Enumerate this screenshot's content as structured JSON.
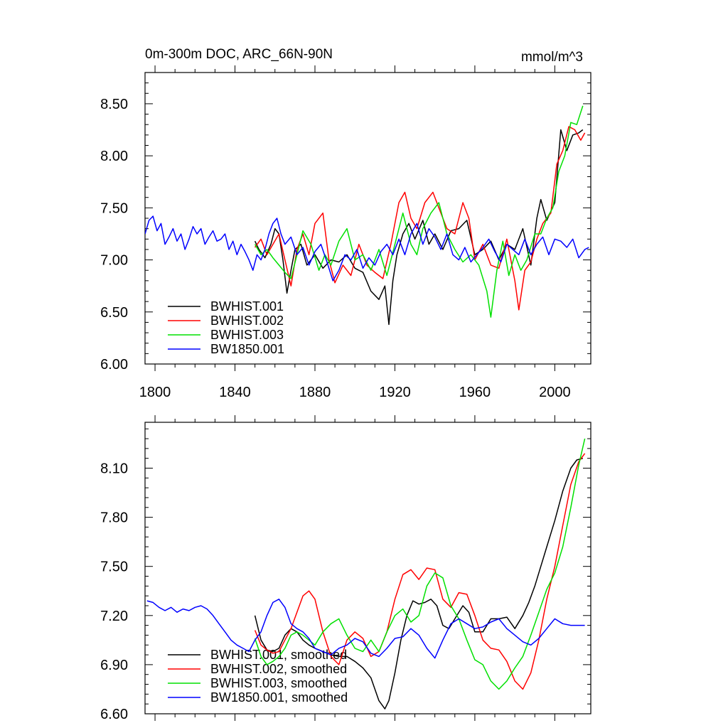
{
  "chart_data": [
    {
      "type": "line",
      "title": "0m-300m DOC, ARC_66N-90N",
      "units": "mmol/m^3",
      "xlim": [
        1795,
        2018
      ],
      "ylim": [
        6.0,
        8.8
      ],
      "x_ticks": [
        1800,
        1840,
        1880,
        1920,
        1960,
        2000
      ],
      "x_tick_labels": [
        "1800",
        "1840",
        "1880",
        "1920",
        "1960",
        "2000"
      ],
      "y_ticks": [
        6.0,
        6.5,
        7.0,
        7.5,
        8.0,
        8.5
      ],
      "y_tick_labels": [
        "6.00",
        "6.50",
        "7.00",
        "7.50",
        "8.00",
        "8.50"
      ],
      "legend_position": "bottom-left",
      "series": [
        {
          "name": "BWHIST.001",
          "color": "#000000",
          "x": [
            1850,
            1852,
            1855,
            1858,
            1860,
            1862,
            1864,
            1866,
            1868,
            1870,
            1873,
            1876,
            1880,
            1884,
            1888,
            1892,
            1896,
            1900,
            1904,
            1908,
            1912,
            1915,
            1917,
            1919,
            1921,
            1924,
            1927,
            1930,
            1934,
            1937,
            1940,
            1944,
            1948,
            1952,
            1956,
            1960,
            1964,
            1968,
            1972,
            1976,
            1980,
            1984,
            1988,
            1991,
            1993,
            1996,
            2000,
            2003,
            2006,
            2009,
            2012,
            2014
          ],
          "values": [
            7.18,
            7.1,
            7.02,
            7.15,
            7.3,
            7.25,
            7.0,
            6.68,
            6.9,
            7.1,
            7.15,
            6.95,
            7.05,
            6.92,
            7.0,
            6.98,
            7.05,
            6.92,
            6.88,
            6.7,
            6.62,
            6.75,
            6.38,
            6.8,
            7.05,
            7.25,
            7.35,
            7.2,
            7.38,
            7.15,
            7.25,
            7.1,
            7.28,
            7.3,
            7.38,
            7.05,
            7.1,
            7.18,
            7.0,
            7.15,
            7.1,
            7.3,
            6.95,
            7.4,
            7.58,
            7.38,
            7.55,
            8.25,
            8.05,
            8.2,
            8.22,
            8.25
          ]
        },
        {
          "name": "BWHIST.002",
          "color": "#ff0000",
          "x": [
            1850,
            1853,
            1856,
            1859,
            1862,
            1865,
            1868,
            1871,
            1874,
            1877,
            1880,
            1884,
            1887,
            1890,
            1894,
            1898,
            1902,
            1906,
            1910,
            1914,
            1918,
            1922,
            1925,
            1928,
            1931,
            1935,
            1939,
            1942,
            1946,
            1950,
            1954,
            1957,
            1960,
            1964,
            1968,
            1972,
            1976,
            1980,
            1982,
            1985,
            1988,
            1991,
            1994,
            1998,
            2001,
            2004,
            2007,
            2010,
            2013,
            2015
          ],
          "values": [
            7.12,
            7.2,
            7.05,
            7.15,
            7.25,
            7.0,
            6.75,
            7.1,
            7.25,
            7.05,
            7.35,
            7.45,
            7.0,
            6.78,
            6.95,
            6.85,
            7.15,
            6.95,
            6.88,
            6.82,
            7.15,
            7.55,
            7.65,
            7.4,
            7.3,
            7.55,
            7.65,
            7.5,
            7.3,
            7.25,
            7.55,
            7.4,
            7.0,
            7.15,
            6.95,
            6.92,
            7.2,
            6.8,
            6.52,
            6.9,
            6.98,
            7.2,
            7.35,
            7.45,
            7.92,
            8.05,
            8.28,
            8.25,
            8.15,
            8.22
          ]
        },
        {
          "name": "BWHIST.003",
          "color": "#00e000",
          "x": [
            1850,
            1853,
            1856,
            1859,
            1862,
            1865,
            1868,
            1871,
            1874,
            1878,
            1882,
            1885,
            1888,
            1892,
            1896,
            1900,
            1904,
            1908,
            1912,
            1916,
            1920,
            1924,
            1928,
            1931,
            1934,
            1938,
            1942,
            1946,
            1950,
            1954,
            1958,
            1962,
            1966,
            1968,
            1971,
            1974,
            1977,
            1980,
            1983,
            1986,
            1990,
            1993,
            1996,
            1999,
            2002,
            2005,
            2008,
            2011,
            2014
          ],
          "values": [
            7.15,
            7.05,
            7.1,
            7.02,
            6.95,
            6.88,
            6.82,
            7.05,
            7.28,
            7.15,
            6.9,
            7.05,
            6.95,
            7.18,
            7.3,
            7.0,
            7.05,
            6.9,
            7.1,
            6.85,
            7.15,
            7.45,
            7.15,
            7.05,
            7.3,
            7.45,
            7.55,
            7.25,
            7.1,
            6.98,
            7.05,
            6.95,
            6.7,
            6.45,
            6.9,
            7.18,
            6.85,
            7.05,
            6.9,
            7.0,
            7.25,
            7.25,
            7.4,
            7.5,
            7.85,
            8.0,
            8.32,
            8.3,
            8.48
          ]
        },
        {
          "name": "BW1850.001",
          "color": "#0000ff",
          "x": [
            1795,
            1797,
            1799,
            1801,
            1803,
            1805,
            1807,
            1809,
            1811,
            1813,
            1815,
            1817,
            1819,
            1821,
            1823,
            1825,
            1827,
            1829,
            1831,
            1833,
            1835,
            1837,
            1839,
            1841,
            1843,
            1845,
            1847,
            1849,
            1851,
            1853,
            1855,
            1857,
            1859,
            1861,
            1863,
            1865,
            1868,
            1871,
            1874,
            1877,
            1880,
            1883,
            1886,
            1889,
            1892,
            1895,
            1898,
            1901,
            1904,
            1907,
            1910,
            1913,
            1916,
            1919,
            1922,
            1925,
            1928,
            1931,
            1934,
            1937,
            1940,
            1943,
            1946,
            1949,
            1952,
            1955,
            1958,
            1961,
            1964,
            1967,
            1970,
            1973,
            1976,
            1979,
            1982,
            1985,
            1988,
            1991,
            1994,
            1997,
            2000,
            2003,
            2006,
            2009,
            2012,
            2015,
            2017
          ],
          "values": [
            7.25,
            7.38,
            7.42,
            7.28,
            7.35,
            7.15,
            7.22,
            7.3,
            7.18,
            7.25,
            7.1,
            7.2,
            7.32,
            7.25,
            7.3,
            7.15,
            7.22,
            7.28,
            7.18,
            7.2,
            7.25,
            7.1,
            7.18,
            7.05,
            7.15,
            7.08,
            7.0,
            6.9,
            7.05,
            7.0,
            7.1,
            7.25,
            7.35,
            7.4,
            7.25,
            7.15,
            7.22,
            7.05,
            7.12,
            6.95,
            7.08,
            7.15,
            6.98,
            6.8,
            6.9,
            7.05,
            7.0,
            7.1,
            6.92,
            7.02,
            6.95,
            7.08,
            7.15,
            7.05,
            7.2,
            7.05,
            7.25,
            7.35,
            7.15,
            7.3,
            7.22,
            7.1,
            7.25,
            7.05,
            7.0,
            7.12,
            6.98,
            7.05,
            7.12,
            7.2,
            7.08,
            6.98,
            7.15,
            7.1,
            7.05,
            7.2,
            7.05,
            7.15,
            7.22,
            7.05,
            7.2,
            7.18,
            7.12,
            7.2,
            7.02,
            7.1,
            7.12
          ]
        }
      ]
    },
    {
      "type": "line",
      "title": "",
      "units": "",
      "xlim": [
        1795,
        2018
      ],
      "ylim": [
        6.6,
        8.38
      ],
      "x_ticks": [
        1800,
        1840,
        1880,
        1920,
        1960,
        2000
      ],
      "x_tick_labels": [],
      "y_ticks": [
        6.6,
        6.9,
        7.2,
        7.5,
        7.8,
        8.1
      ],
      "y_tick_labels": [
        "6.60",
        "6.90",
        "7.20",
        "7.50",
        "7.80",
        "8.10"
      ],
      "legend_position": "bottom-left",
      "series": [
        {
          "name": "BWHIST.001, smoothed",
          "color": "#000000",
          "x": [
            1850,
            1853,
            1856,
            1859,
            1862,
            1865,
            1868,
            1871,
            1874,
            1877,
            1880,
            1884,
            1888,
            1892,
            1896,
            1900,
            1904,
            1908,
            1912,
            1915,
            1917,
            1920,
            1923,
            1926,
            1929,
            1932,
            1935,
            1938,
            1941,
            1944,
            1947,
            1950,
            1954,
            1957,
            1960,
            1964,
            1968,
            1972,
            1976,
            1980,
            1984,
            1987,
            1990,
            1993,
            1996,
            2000,
            2004,
            2008,
            2011,
            2014
          ],
          "values": [
            7.2,
            7.05,
            6.99,
            6.98,
            7.0,
            7.08,
            7.12,
            7.1,
            7.05,
            7.02,
            7.0,
            6.98,
            6.96,
            6.95,
            6.95,
            6.92,
            6.88,
            6.82,
            6.68,
            6.63,
            6.68,
            6.85,
            7.05,
            7.2,
            7.29,
            7.27,
            7.28,
            7.3,
            7.26,
            7.14,
            7.12,
            7.18,
            7.26,
            7.22,
            7.1,
            7.1,
            7.18,
            7.18,
            7.19,
            7.12,
            7.2,
            7.28,
            7.38,
            7.5,
            7.62,
            7.78,
            7.96,
            8.1,
            8.15,
            8.16
          ]
        },
        {
          "name": "BWHIST.002, smoothed",
          "color": "#ff0000",
          "x": [
            1850,
            1853,
            1856,
            1859,
            1862,
            1865,
            1868,
            1871,
            1874,
            1877,
            1880,
            1884,
            1888,
            1892,
            1896,
            1900,
            1904,
            1908,
            1912,
            1916,
            1920,
            1924,
            1928,
            1932,
            1936,
            1940,
            1944,
            1948,
            1952,
            1956,
            1960,
            1964,
            1968,
            1972,
            1976,
            1980,
            1984,
            1988,
            1992,
            1996,
            2000,
            2004,
            2008,
            2012,
            2015
          ],
          "values": [
            7.11,
            7.02,
            6.99,
            6.97,
            6.98,
            7.05,
            7.12,
            7.22,
            7.32,
            7.35,
            7.3,
            7.1,
            6.95,
            6.9,
            7.05,
            7.1,
            7.06,
            6.95,
            6.98,
            7.1,
            7.3,
            7.45,
            7.48,
            7.42,
            7.49,
            7.48,
            7.3,
            7.25,
            7.34,
            7.33,
            7.2,
            7.05,
            7.0,
            6.99,
            6.92,
            6.8,
            6.75,
            6.85,
            7.05,
            7.3,
            7.5,
            7.75,
            8.0,
            8.14,
            8.19
          ]
        },
        {
          "name": "BWHIST.003, smoothed",
          "color": "#00e000",
          "x": [
            1850,
            1853,
            1856,
            1859,
            1862,
            1865,
            1868,
            1871,
            1874,
            1877,
            1880,
            1884,
            1888,
            1892,
            1896,
            1900,
            1904,
            1908,
            1912,
            1916,
            1920,
            1924,
            1928,
            1932,
            1936,
            1940,
            1944,
            1948,
            1952,
            1956,
            1960,
            1964,
            1968,
            1972,
            1976,
            1980,
            1984,
            1988,
            1992,
            1996,
            2000,
            2004,
            2008,
            2012,
            2015
          ],
          "values": [
            7.06,
            6.95,
            6.9,
            6.92,
            6.95,
            7.0,
            7.08,
            7.1,
            7.08,
            7.05,
            7.02,
            7.1,
            7.15,
            7.18,
            7.08,
            7.0,
            6.98,
            7.05,
            6.98,
            7.1,
            7.2,
            7.24,
            7.16,
            7.2,
            7.38,
            7.46,
            7.43,
            7.26,
            7.18,
            7.05,
            6.93,
            6.9,
            6.8,
            6.75,
            6.8,
            6.88,
            6.95,
            7.08,
            7.22,
            7.36,
            7.46,
            7.62,
            7.86,
            8.12,
            8.28
          ]
        },
        {
          "name": "BW1850.001, smoothed",
          "color": "#0000ff",
          "x": [
            1796,
            1799,
            1802,
            1805,
            1808,
            1811,
            1814,
            1817,
            1820,
            1823,
            1826,
            1829,
            1832,
            1835,
            1838,
            1841,
            1844,
            1847,
            1850,
            1853,
            1856,
            1859,
            1862,
            1865,
            1868,
            1871,
            1874,
            1877,
            1880,
            1884,
            1888,
            1892,
            1896,
            1900,
            1904,
            1908,
            1912,
            1916,
            1920,
            1924,
            1928,
            1932,
            1936,
            1940,
            1944,
            1948,
            1952,
            1956,
            1960,
            1964,
            1968,
            1972,
            1976,
            1980,
            1984,
            1988,
            1992,
            1996,
            2000,
            2004,
            2008,
            2012,
            2015
          ],
          "values": [
            7.29,
            7.28,
            7.25,
            7.23,
            7.25,
            7.22,
            7.24,
            7.23,
            7.25,
            7.26,
            7.24,
            7.2,
            7.15,
            7.1,
            7.05,
            7.02,
            7.0,
            6.98,
            7.05,
            7.1,
            7.2,
            7.28,
            7.3,
            7.25,
            7.15,
            7.12,
            7.1,
            7.06,
            7.0,
            6.98,
            6.96,
            7.0,
            7.02,
            7.06,
            7.04,
            6.97,
            6.95,
            7.0,
            7.06,
            7.07,
            7.12,
            7.08,
            7.0,
            6.94,
            7.05,
            7.15,
            7.18,
            7.15,
            7.12,
            7.13,
            7.16,
            7.18,
            7.12,
            7.08,
            7.04,
            7.02,
            7.06,
            7.12,
            7.18,
            7.15,
            7.14,
            7.14,
            7.14
          ]
        }
      ]
    }
  ]
}
